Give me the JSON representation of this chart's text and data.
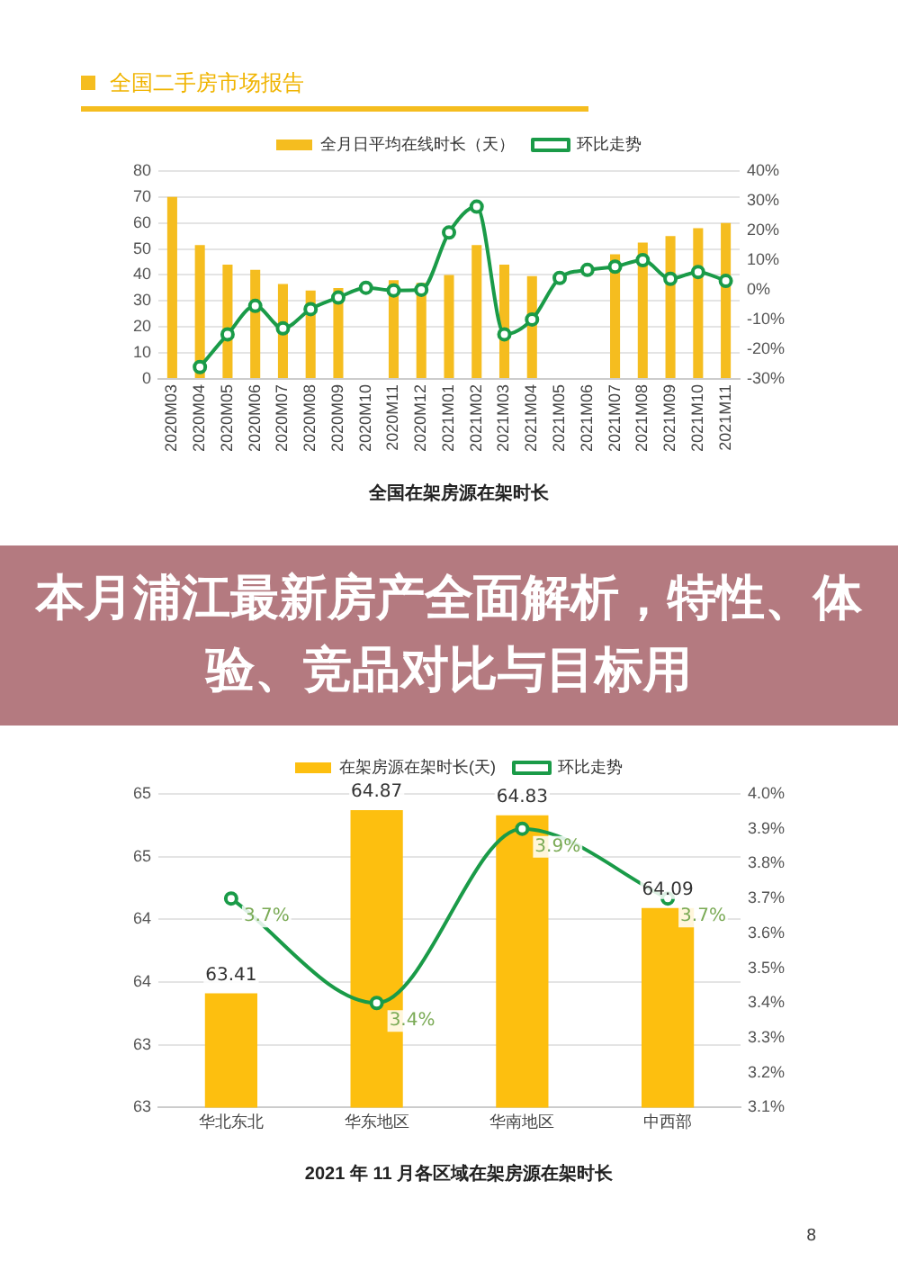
{
  "chart_data": [
    {
      "type": "bar",
      "title": "全国在架房源在架时长",
      "annotations": [
        "全国二手房市场报告"
      ],
      "categories": [
        "2020M03",
        "2020M04",
        "2020M05",
        "2020M06",
        "2020M07",
        "2020M08",
        "2020M09",
        "2020M10",
        "2020M11",
        "2020M12",
        "2021M01",
        "2021M02",
        "2021M03",
        "2021M04",
        "2021M05",
        "2021M06",
        "2021M07",
        "2021M08",
        "2021M09",
        "2021M10",
        "2021M11"
      ],
      "series": [
        {
          "name": "全月日平均在线时长（天）",
          "color": "#f5bd1f",
          "values": [
            70,
            51.5,
            44,
            42,
            36.5,
            34,
            35,
            null,
            38,
            37,
            40,
            51.5,
            44,
            39.6,
            null,
            null,
            48,
            52.5,
            55,
            58,
            60
          ]
        },
        {
          "name": "环比走势",
          "type": "line",
          "axis": "y2",
          "color": "#1a9b48",
          "values": [
            null,
            -26,
            -15,
            -5.4,
            -13,
            -6.5,
            -2.6,
            0.7,
            -0.2,
            0,
            19.3,
            28,
            -15,
            -10,
            4,
            6.7,
            7.8,
            10,
            3.7,
            6,
            3
          ]
        }
      ],
      "ylim": [
        0,
        80
      ],
      "yticks": [
        0,
        10,
        20,
        30,
        40,
        50,
        60,
        70,
        80
      ],
      "y2lim": [
        -30,
        40
      ],
      "y2ticks": [
        {
          "value": -30,
          "label": "-30%"
        },
        {
          "value": -20,
          "label": "-20%"
        },
        {
          "value": -10,
          "label": "-10%"
        },
        {
          "value": 0,
          "label": "0%"
        },
        {
          "value": 10,
          "label": "10%"
        },
        {
          "value": 20,
          "label": "20%"
        },
        {
          "value": 30,
          "label": "30%"
        },
        {
          "value": 40,
          "label": "40%"
        }
      ],
      "grid": "y",
      "legend": "top",
      "marker": "circle"
    },
    {
      "type": "other",
      "title": "本月浦江最新房产全面解析，特性、体验、竞品对比与目标用"
    },
    {
      "type": "bar",
      "title": "2021 年 11 月各区域在架房源在架时长",
      "annotations": [
        "8"
      ],
      "categories": [
        "华北东北",
        "华东地区",
        "华南地区",
        "中西部"
      ],
      "series": [
        {
          "name": "在架房源在架时长(天)",
          "color": "#fdbf0f",
          "values": [
            63.41,
            64.87,
            64.83,
            64.09
          ],
          "value_labels": [
            "63.41",
            "64.87",
            "64.83",
            "64.09"
          ]
        },
        {
          "name": "环比走势",
          "type": "line",
          "axis": "y2",
          "color": "#1a9b48",
          "values": [
            3.7,
            3.4,
            3.9,
            3.7
          ],
          "value_labels": [
            "3.7%",
            "3.4%",
            "3.9%",
            "3.7%"
          ]
        }
      ],
      "ylim": [
        62.5,
        65
      ],
      "yticks": [
        {
          "value": 62.5,
          "label": "63"
        },
        {
          "value": 63,
          "label": "63"
        },
        {
          "value": 63.5,
          "label": "64"
        },
        {
          "value": 64,
          "label": "64"
        },
        {
          "value": 64.5,
          "label": "65"
        },
        {
          "value": 65,
          "label": "65"
        }
      ],
      "y2lim": [
        3.1,
        4.0
      ],
      "y2ticks": [
        {
          "value": 3.1,
          "label": "3.1%"
        },
        {
          "value": 3.2,
          "label": "3.2%"
        },
        {
          "value": 3.3,
          "label": "3.3%"
        },
        {
          "value": 3.4,
          "label": "3.4%"
        },
        {
          "value": 3.5,
          "label": "3.5%"
        },
        {
          "value": 3.6,
          "label": "3.6%"
        },
        {
          "value": 3.7,
          "label": "3.7%"
        },
        {
          "value": 3.8,
          "label": "3.8%"
        },
        {
          "value": 3.9,
          "label": "3.9%"
        },
        {
          "value": 4.0,
          "label": "4.0%"
        }
      ],
      "grid": "y",
      "legend": "top",
      "marker": "circle"
    }
  ]
}
